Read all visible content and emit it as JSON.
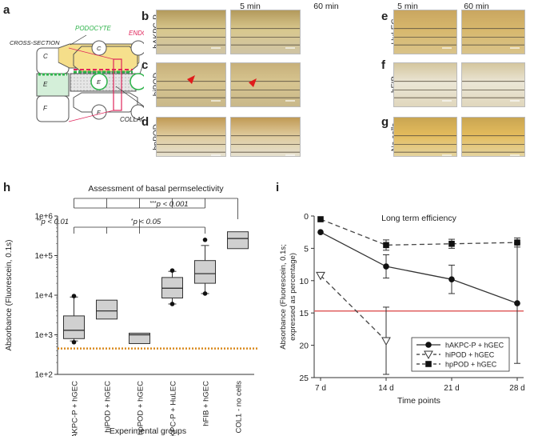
{
  "panel_labels": {
    "a": "a",
    "b": "b",
    "c": "c",
    "d": "d",
    "e": "e",
    "f": "f",
    "g": "g",
    "h": "h",
    "i": "i"
  },
  "schematic": {
    "cross_section": "CROSS-SECTION",
    "podocyte": "PODOCYTE",
    "endothelium": "ENDOTHELIUM",
    "collagen": "COLLAGEN I",
    "channel_C": "C",
    "channel_E": "E",
    "channel_F": "F"
  },
  "micrographs": {
    "time_5": "5 min",
    "time_60": "60 min",
    "rows_left": [
      "hAKPC-P",
      "hiPOD",
      "hpPOD"
    ],
    "rows_right": [
      "HuLEC",
      "hFIB",
      "No cells"
    ]
  },
  "colors": {
    "podocyte_green": "#2db34a",
    "endothelium_red": "#e0245a",
    "threshold_dotted": "#d98a1e",
    "threshold_red": "#e06060",
    "box_fill": "#d0d0d0"
  },
  "chart_data": [
    {
      "type": "box",
      "title": "Assessment of basal permselectivity",
      "xlabel": "Experimental groups",
      "ylabel": "Absorbance (Fluorescein, 0.1s)",
      "yscale": "log",
      "ylim": [
        100,
        1000000
      ],
      "ytick_labels": [
        "1e+2",
        "1e+3",
        "1e+4",
        "1e+5",
        "1e+6"
      ],
      "ytick_values": [
        100,
        1000,
        10000,
        100000,
        1000000
      ],
      "categories": [
        "hAKPC-P + hGEC",
        "hiPOD + hGEC",
        "hpPOD + hGEC",
        "hAKPC-P + HuLEC",
        "hFIB + hGEC",
        "COL1 - no cells"
      ],
      "boxes": [
        {
          "q1": 800,
          "median": 1300,
          "q3": 3000,
          "whisker_low": 700,
          "whisker_high": 9000,
          "outliers": [
            650,
            9500
          ]
        },
        {
          "q1": 2500,
          "median": 4000,
          "q3": 7500,
          "whisker_low": 2500,
          "whisker_high": 7500,
          "outliers": []
        },
        {
          "q1": 600,
          "median": 1000,
          "q3": 1100,
          "whisker_low": 600,
          "whisker_high": 1100,
          "outliers": []
        },
        {
          "q1": 8500,
          "median": 15000,
          "q3": 28000,
          "whisker_low": 6000,
          "whisker_high": 40000,
          "outliers": [
            6000,
            42000
          ]
        },
        {
          "q1": 20000,
          "median": 35000,
          "q3": 75000,
          "whisker_low": 11000,
          "whisker_high": 180000,
          "outliers": [
            11000,
            250000
          ]
        },
        {
          "q1": 150000,
          "median": 270000,
          "q3": 400000,
          "whisker_low": 150000,
          "whisker_high": 400000,
          "outliers": []
        }
      ],
      "threshold": 450,
      "significance": [
        {
          "label": "***p < 0.001",
          "stars": "***",
          "rest": "p < 0.001"
        },
        {
          "label": "**p < 0.01",
          "stars": "**",
          "rest": "p < 0.01"
        },
        {
          "label": "*p < 0.05",
          "stars": "*",
          "rest": "p < 0.05"
        }
      ]
    },
    {
      "type": "line",
      "title": "Long term efficiency",
      "xlabel": "Time points",
      "ylabel": "Absorbance (Fluorescein, 0.1s; expressed as percentage)",
      "ylabel_lines": [
        "Absorbance (Fluorescein, 0.1s;",
        "expressed as percentage)"
      ],
      "y_inverted": true,
      "ylim": [
        0,
        25
      ],
      "ytick_labels": [
        "0",
        "5",
        "10",
        "15",
        "20",
        "25"
      ],
      "ytick_values": [
        0,
        5,
        10,
        15,
        20,
        25
      ],
      "categories": [
        "7 d",
        "14 d",
        "21 d",
        "28 d"
      ],
      "threshold": 14.7,
      "series": [
        {
          "name": "hAKPC-P + hGEC",
          "marker": "circle",
          "dash": "solid",
          "values": [
            2.5,
            7.8,
            9.8,
            13.5
          ],
          "err": [
            0,
            1.8,
            2.2,
            9.3
          ]
        },
        {
          "name": "hiPOD + hGEC",
          "marker": "triangle-down",
          "dash": "dashed",
          "values": [
            9.2,
            19.3,
            null,
            null
          ],
          "err": [
            0,
            5.2,
            null,
            null
          ]
        },
        {
          "name": "hpPOD + hGEC",
          "marker": "square",
          "dash": "dashed",
          "values": [
            0.5,
            4.5,
            4.3,
            4.1
          ],
          "err": [
            0,
            0.8,
            0.7,
            0.7
          ]
        }
      ]
    }
  ]
}
